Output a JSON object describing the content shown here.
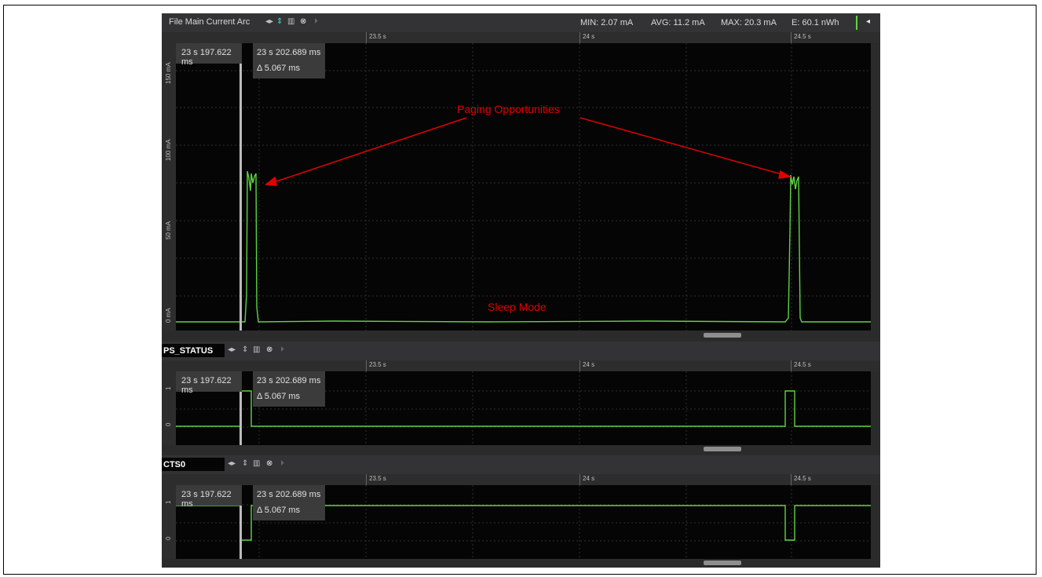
{
  "top_panel": {
    "title": "File Main Current Arc",
    "stats": {
      "min": "MIN: 2.07 mA",
      "avg": "AVG: 11.2 mA",
      "max": "MAX: 20.3 mA",
      "energy": "E: 60.1 nWh"
    },
    "y_labels": [
      "150 mA",
      "100 mA",
      "50 mA",
      "0 mA"
    ],
    "cursor_a": "23 s 197.622 ms",
    "cursor_b": "23 s 202.689 ms",
    "delta": "Δ 5.067 ms"
  },
  "ruler_labels": [
    "23.5 s",
    "24 s",
    "24.5 s"
  ],
  "annotations": {
    "paging": "Paging Opportunities",
    "sleep": "Sleep Mode"
  },
  "channels": [
    {
      "name": "PS_STATUS",
      "y_labels": [
        "1",
        "0"
      ],
      "cursor_a": "23 s 197.622 ms",
      "cursor_b": "23 s 202.689 ms",
      "delta": "Δ 5.067 ms"
    },
    {
      "name": "CTS0",
      "y_labels": [
        "1",
        "0"
      ],
      "cursor_a": "23 s 197.622 ms",
      "cursor_b": "23 s 202.689 ms",
      "delta": "Δ 5.067 ms"
    }
  ],
  "colors": {
    "trace": "#5fd342",
    "annotation": "#e00000",
    "background": "#050505"
  }
}
